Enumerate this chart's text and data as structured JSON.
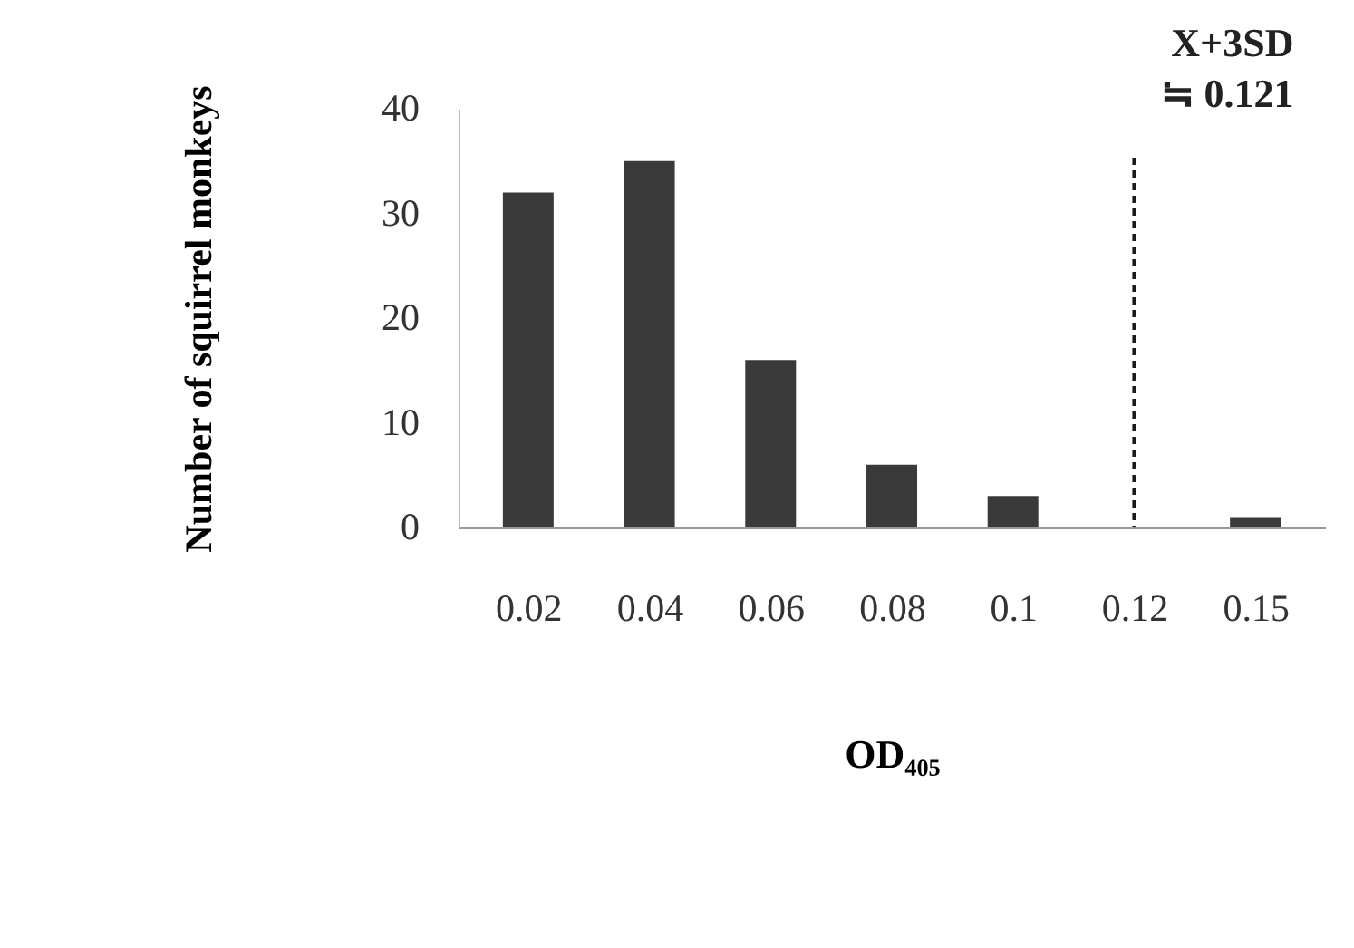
{
  "chart_data": {
    "type": "bar",
    "xlabel": "OD₄₀₅",
    "ylabel": "Number of squirrel monkeys",
    "categories": [
      "0.02",
      "0.04",
      "0.06",
      "0.08",
      "0.1",
      "0.12",
      "0.15"
    ],
    "values": [
      32,
      35,
      16,
      6,
      3,
      0,
      1
    ],
    "color": "#3a3a3a",
    "ylim": [
      0,
      40
    ],
    "yticks": [
      0,
      10,
      20,
      30,
      40
    ],
    "grid": false,
    "ref_lines": [
      {
        "axis": "x",
        "value": "0.12",
        "label": "X+3SD\n≒ 0.121",
        "color": "#1a1a1a",
        "line_style": "dashed"
      }
    ]
  }
}
